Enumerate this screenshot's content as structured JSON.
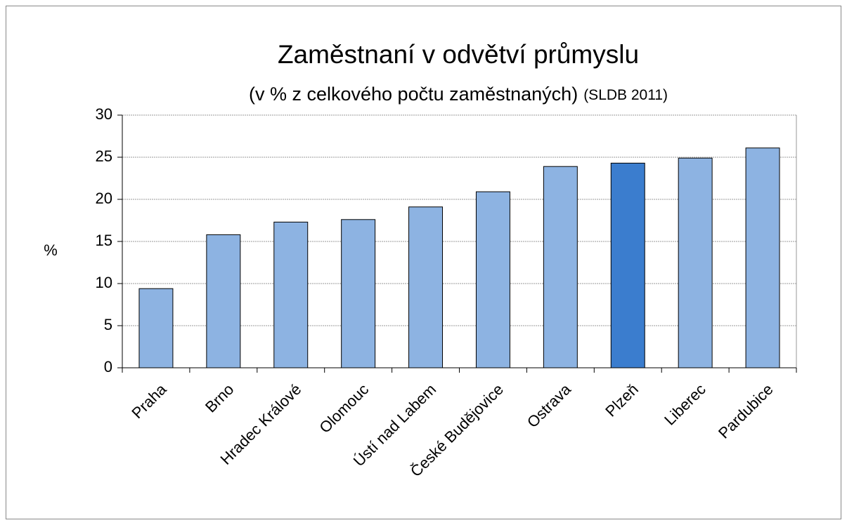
{
  "chart_data": {
    "type": "bar",
    "title": "Zaměstnaní v odvětví průmyslu",
    "subtitle": "(v % z celkového počtu zaměstnaných)",
    "subtitle_note": "(SLDB 2011)",
    "y_label": "%",
    "categories": [
      "Praha",
      "Brno",
      "Hradec Králové",
      "Olomouc",
      "Ústí nad Labem",
      "České Budějovice",
      "Ostrava",
      "Plzeň",
      "Liberec",
      "Pardubice"
    ],
    "values": [
      9.4,
      15.8,
      17.3,
      17.6,
      19.1,
      20.9,
      23.9,
      24.3,
      24.9,
      26.1
    ],
    "colors": [
      "#8db3e2",
      "#8db3e2",
      "#8db3e2",
      "#8db3e2",
      "#8db3e2",
      "#8db3e2",
      "#8db3e2",
      "#3b7dce",
      "#8db3e2",
      "#8db3e2"
    ],
    "ylim": [
      0,
      30
    ],
    "yticks": [
      0,
      5,
      10,
      15,
      20,
      25,
      30
    ],
    "grid": true
  }
}
